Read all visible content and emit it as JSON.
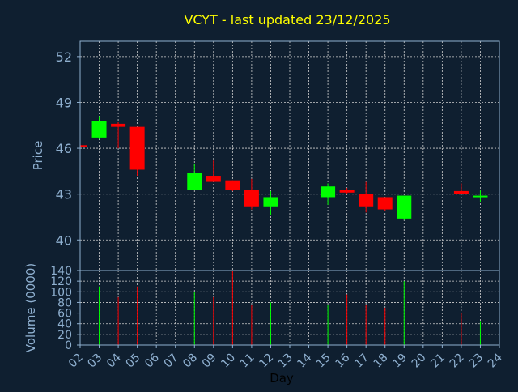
{
  "chart_data": {
    "type": "candlestick",
    "title": "VCYT - last updated 23/12/2025",
    "xlabel": "Day",
    "price_ylabel": "Price",
    "volume_ylabel": "Volume (0000)",
    "price_ylim": [
      38.0,
      53.0
    ],
    "price_yticks": [
      40,
      43,
      46,
      49,
      52
    ],
    "volume_ylim": [
      0,
      140
    ],
    "volume_yticks": [
      0,
      20,
      40,
      60,
      80,
      100,
      120,
      140
    ],
    "x_ticks": [
      "02",
      "03",
      "04",
      "05",
      "06",
      "07",
      "08",
      "09",
      "10",
      "11",
      "12",
      "13",
      "14",
      "15",
      "16",
      "17",
      "18",
      "19",
      "20",
      "21",
      "22",
      "23",
      "24"
    ],
    "grid": true,
    "colors": {
      "background": "#0f1f30",
      "panel": "#0f1f30",
      "axis": "#8fb0d0",
      "tick_text": "#8fb0d0",
      "grid": "#d0d0d0",
      "title": "#ffff00",
      "up": "#00ff00",
      "down": "#ff0000"
    },
    "candles": [
      {
        "day": 2,
        "open": 46.2,
        "high": 46.2,
        "low": 46.1,
        "close": 46.1,
        "volume": 0
      },
      {
        "day": 3,
        "open": 46.7,
        "high": 48.1,
        "low": 46.6,
        "close": 47.8,
        "volume": 110
      },
      {
        "day": 4,
        "open": 47.6,
        "high": 47.7,
        "low": 46.0,
        "close": 47.4,
        "volume": 90
      },
      {
        "day": 5,
        "open": 47.4,
        "high": 47.4,
        "low": 44.2,
        "close": 44.6,
        "volume": 110
      },
      {
        "day": 8,
        "open": 43.3,
        "high": 45.0,
        "low": 43.3,
        "close": 44.4,
        "volume": 100
      },
      {
        "day": 9,
        "open": 44.2,
        "high": 45.2,
        "low": 43.8,
        "close": 43.8,
        "volume": 90
      },
      {
        "day": 10,
        "open": 43.9,
        "high": 43.9,
        "low": 43.2,
        "close": 43.3,
        "volume": 140
      },
      {
        "day": 11,
        "open": 43.3,
        "high": 44.0,
        "low": 42.0,
        "close": 42.2,
        "volume": 75
      },
      {
        "day": 12,
        "open": 42.2,
        "high": 43.2,
        "low": 41.6,
        "close": 42.8,
        "volume": 80
      },
      {
        "day": 15,
        "open": 42.8,
        "high": 43.7,
        "low": 42.3,
        "close": 43.5,
        "volume": 75
      },
      {
        "day": 16,
        "open": 43.3,
        "high": 43.4,
        "low": 43.0,
        "close": 43.1,
        "volume": 95
      },
      {
        "day": 17,
        "open": 43.0,
        "high": 43.8,
        "low": 41.8,
        "close": 42.2,
        "volume": 75
      },
      {
        "day": 18,
        "open": 42.8,
        "high": 42.8,
        "low": 41.9,
        "close": 42.0,
        "volume": 70
      },
      {
        "day": 19,
        "open": 41.4,
        "high": 42.9,
        "low": 41.3,
        "close": 42.9,
        "volume": 120
      },
      {
        "day": 22,
        "open": 43.2,
        "high": 43.7,
        "low": 43.0,
        "close": 43.0,
        "volume": 60
      },
      {
        "day": 23,
        "open": 42.8,
        "high": 43.3,
        "low": 42.5,
        "close": 42.9,
        "volume": 45
      }
    ]
  }
}
